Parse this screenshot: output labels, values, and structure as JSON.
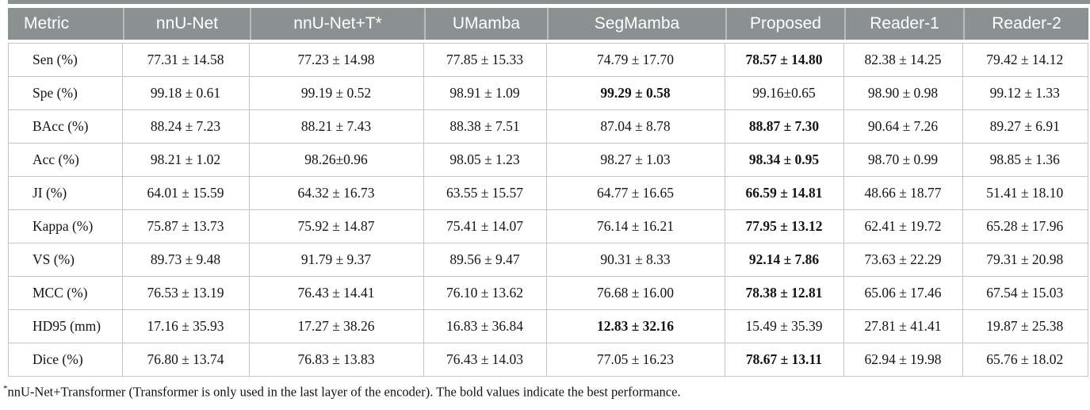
{
  "colors": {
    "header_bg": "#8b9191",
    "header_divider": "#b8bcbc",
    "header_text": "#ffffff",
    "body_border": "#c3c6c6",
    "body_text": "#141414",
    "background": "#ffffff"
  },
  "table": {
    "columns": [
      "Metric",
      "nnU-Net",
      "nnU-Net+T*",
      "UMamba",
      "SegMamba",
      "Proposed",
      "Reader-1",
      "Reader-2"
    ],
    "rows": [
      {
        "label": "Sen (%)",
        "values": [
          "77.31 ± 14.58",
          "77.23 ± 14.98",
          "77.85 ± 15.33",
          "74.79 ± 17.70",
          "78.57 ± 14.80",
          "82.38 ± 14.25",
          "79.42 ± 14.12"
        ],
        "bold_index": 4
      },
      {
        "label": "Spe (%)",
        "values": [
          "99.18 ± 0.61",
          "99.19 ± 0.52",
          "98.91 ± 1.09",
          "99.29 ± 0.58",
          "99.16±0.65",
          "98.90 ± 0.98",
          "99.12 ± 1.33"
        ],
        "bold_index": 3
      },
      {
        "label": "BAcc (%)",
        "values": [
          "88.24 ± 7.23",
          "88.21 ± 7.43",
          "88.38 ± 7.51",
          "87.04 ± 8.78",
          "88.87 ± 7.30",
          "90.64 ± 7.26",
          "89.27 ± 6.91"
        ],
        "bold_index": 4
      },
      {
        "label": "Acc (%)",
        "values": [
          "98.21 ± 1.02",
          "98.26±0.96",
          "98.05 ± 1.23",
          "98.27 ± 1.03",
          "98.34 ± 0.95",
          "98.70 ± 0.99",
          "98.85 ± 1.36"
        ],
        "bold_index": 4
      },
      {
        "label": "JI (%)",
        "values": [
          "64.01 ± 15.59",
          "64.32 ± 16.73",
          "63.55 ± 15.57",
          "64.77 ± 16.65",
          "66.59 ± 14.81",
          "48.66 ± 18.77",
          "51.41 ± 18.10"
        ],
        "bold_index": 4
      },
      {
        "label": "Kappa (%)",
        "values": [
          "75.87 ± 13.73",
          "75.92 ± 14.87",
          "75.41 ± 14.07",
          "76.14 ± 16.21",
          "77.95 ± 13.12",
          "62.41 ± 19.72",
          "65.28 ± 17.96"
        ],
        "bold_index": 4
      },
      {
        "label": "VS (%)",
        "values": [
          "89.73 ± 9.48",
          "91.79 ± 9.37",
          "89.56 ± 9.47",
          "90.31 ± 8.33",
          "92.14 ± 7.86",
          "73.63 ± 22.29",
          "79.31 ± 20.98"
        ],
        "bold_index": 4
      },
      {
        "label": "MCC (%)",
        "values": [
          "76.53 ± 13.19",
          "76.43 ± 14.41",
          "76.10 ± 13.62",
          "76.68 ± 16.00",
          "78.38 ± 12.81",
          "65.06 ± 17.46",
          "67.54 ± 15.03"
        ],
        "bold_index": 4
      },
      {
        "label": "HD95 (mm)",
        "values": [
          "17.16 ± 35.93",
          "17.27 ± 38.26",
          "16.83 ± 36.84",
          "12.83 ± 32.16",
          "15.49 ± 35.39",
          "27.81 ± 41.41",
          "19.87 ± 25.38"
        ],
        "bold_index": 3
      },
      {
        "label": "Dice (%)",
        "values": [
          "76.80 ± 13.74",
          "76.83 ± 13.83",
          "76.43 ± 14.03",
          "77.05 ± 16.23",
          "78.67 ± 13.11",
          "62.94 ± 19.98",
          "65.76 ± 18.02"
        ],
        "bold_index": 4
      }
    ]
  },
  "footnote": {
    "marker": "*",
    "text": "nnU-Net+Transformer (Transformer is only used in the last layer of the encoder). The bold values indicate the best performance."
  }
}
